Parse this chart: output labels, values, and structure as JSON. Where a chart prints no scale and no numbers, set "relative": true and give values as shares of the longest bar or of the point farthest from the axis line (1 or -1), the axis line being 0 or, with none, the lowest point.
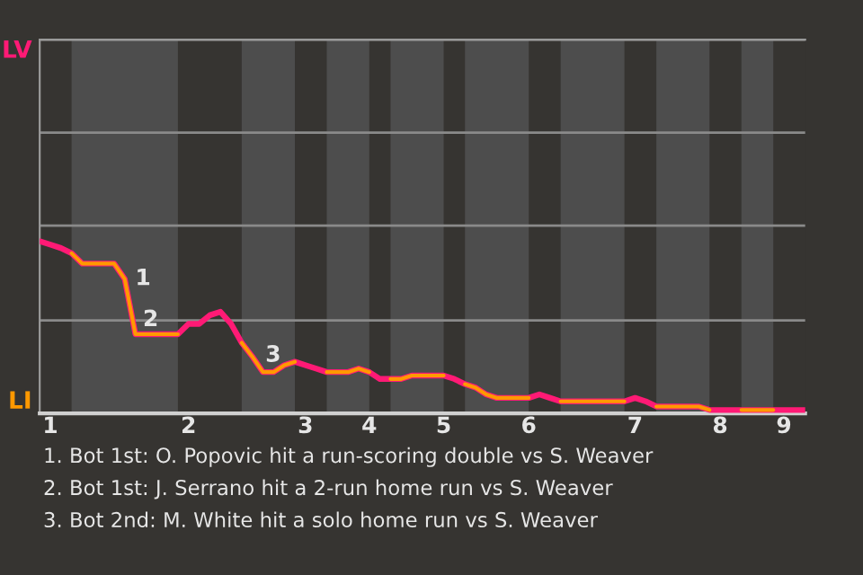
{
  "chart_data": {
    "type": "line",
    "relative": true,
    "categories": [
      null,
      "1",
      null,
      null,
      null,
      null,
      null,
      null,
      null,
      null,
      null,
      null,
      null,
      null,
      "2",
      null,
      null,
      null,
      null,
      null,
      null,
      null,
      null,
      null,
      null,
      "3",
      null,
      null,
      null,
      null,
      null,
      "4",
      null,
      null,
      null,
      null,
      null,
      null,
      "5",
      null,
      null,
      null,
      null,
      null,
      null,
      null,
      "6",
      null,
      null,
      null,
      null,
      null,
      null,
      null,
      null,
      null,
      "7",
      null,
      null,
      null,
      null,
      null,
      null,
      null,
      "8",
      null,
      null,
      null,
      null,
      null,
      "9",
      null,
      null
    ],
    "series": [
      {
        "color": "#ff1a75",
        "values": [
          1,
          0.98,
          0.96,
          0.93,
          0.87,
          0.87,
          0.87,
          0.87,
          0.78,
          0.46,
          0.46,
          0.46,
          0.46,
          0.46,
          0.52,
          0.52,
          0.57,
          0.59,
          0.52,
          0.41,
          0.33,
          0.24,
          0.24,
          0.28,
          0.3,
          0.28,
          0.26,
          0.24,
          0.24,
          0.24,
          0.26,
          0.24,
          0.2,
          0.2,
          0.2,
          0.22,
          0.22,
          0.22,
          0.22,
          0.2,
          0.17,
          0.15,
          0.11,
          0.09,
          0.09,
          0.09,
          0.09,
          0.11,
          0.09,
          0.07,
          0.07,
          0.07,
          0.07,
          0.07,
          0.07,
          0.07,
          0.09,
          0.07,
          0.04,
          0.04,
          0.04,
          0.04,
          0.04,
          0.02,
          0.02,
          0.02,
          0.02,
          0.02,
          0.02,
          0.02,
          0.02,
          0.02,
          0.02
        ]
      },
      {
        "color": "#ff9900",
        "values": [
          null,
          null,
          null,
          0.93,
          0.87,
          0.87,
          0.87,
          0.87,
          0.78,
          0.46,
          0.46,
          0.46,
          0.46,
          0.46,
          null,
          null,
          null,
          null,
          null,
          0.41,
          0.33,
          0.24,
          0.24,
          0.28,
          0.3,
          null,
          null,
          0.24,
          0.24,
          0.24,
          0.26,
          0.24,
          null,
          0.2,
          0.2,
          0.22,
          0.22,
          0.22,
          0.22,
          null,
          0.17,
          0.15,
          0.11,
          0.09,
          0.09,
          0.09,
          0.09,
          null,
          null,
          0.07,
          0.07,
          0.07,
          0.07,
          0.07,
          0.07,
          0.07,
          null,
          null,
          0.04,
          0.04,
          0.04,
          0.04,
          0.04,
          0.02,
          null,
          null,
          0.02,
          0.02,
          0.02,
          0.02,
          null,
          null,
          null
        ]
      }
    ],
    "ref_lines": [
      {
        "axis": "y",
        "value": 0.54,
        "color": "#8a8a8a"
      },
      {
        "axis": "y",
        "value": 1.09,
        "color": "#8a8a8a"
      },
      {
        "axis": "y",
        "value": 1.63,
        "color": "#8a8a8a"
      },
      {
        "axis": "y",
        "value": 2.17,
        "color": "#8a8a8a"
      }
    ],
    "annotations": [
      "1",
      "2",
      "3",
      "LV",
      "LI",
      "1. Bot 1st: O. Popovic hit a run-scoring double vs S. Weaver",
      "2. Bot 1st: J. Serrano hit a 2-run home run vs S. Weaver",
      "3. Bot 2nd: M. White hit a solo home run vs S. Weaver"
    ]
  }
}
